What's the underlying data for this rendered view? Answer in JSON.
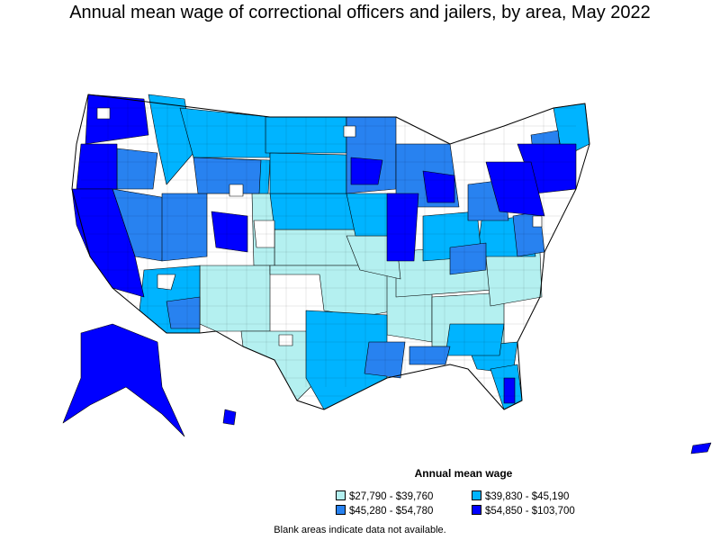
{
  "title": "Annual mean wage of correctional officers and jailers, by area, May 2022",
  "colors": {
    "tier1": "#b4f0f0",
    "tier2": "#00b4ff",
    "tier3": "#2882f0",
    "tier4": "#0000ff",
    "outline": "#000000",
    "no_data": "#ffffff"
  },
  "legend": {
    "title": "Annual mean wage",
    "items": [
      {
        "label": "$27,790 - $39,760",
        "color": "#b4f0f0"
      },
      {
        "label": "$39,830 - $45,190",
        "color": "#00b4ff"
      },
      {
        "label": "$45,280 - $54,780",
        "color": "#2882f0"
      },
      {
        "label": "$54,850 - $103,700",
        "color": "#0000ff"
      }
    ]
  },
  "footnote": "Blank areas indicate data not available."
}
